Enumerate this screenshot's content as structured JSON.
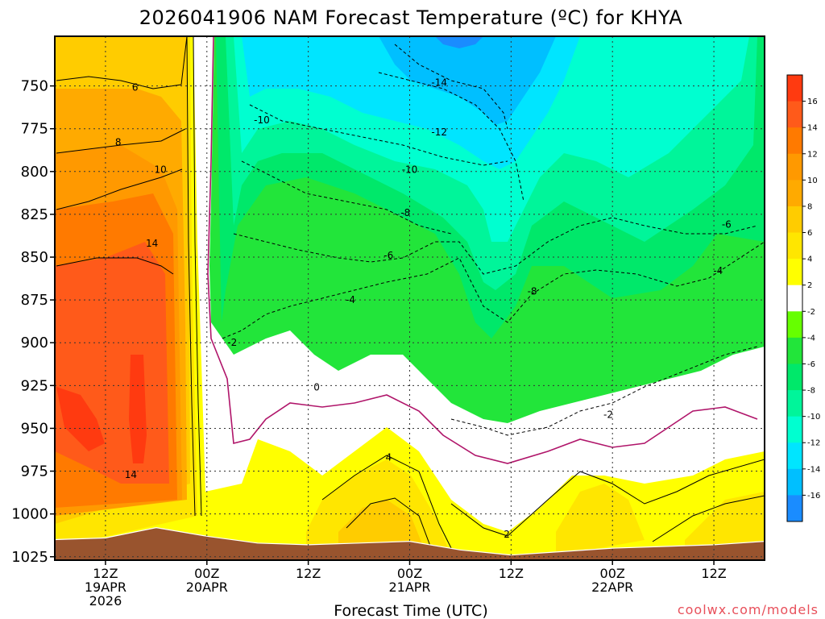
{
  "chart_data": {
    "type": "heatmap",
    "title": "2026041906 NAM Forecast Temperature (ºC) for KHYA",
    "xlabel": "Forecast Time (UTC)",
    "ylabel": "",
    "credit": "coolwx.com/models",
    "x_ticks": [
      {
        "hour": 6,
        "lines": [
          "12Z",
          "19APR",
          "2026"
        ]
      },
      {
        "hour": 18,
        "lines": [
          "00Z",
          "20APR"
        ]
      },
      {
        "hour": 30,
        "lines": [
          "12Z"
        ]
      },
      {
        "hour": 42,
        "lines": [
          "00Z",
          "21APR"
        ]
      },
      {
        "hour": 54,
        "lines": [
          "12Z"
        ]
      },
      {
        "hour": 66,
        "lines": [
          "00Z",
          "22APR"
        ]
      },
      {
        "hour": 78,
        "lines": [
          "12Z"
        ]
      }
    ],
    "xlim": [
      0,
      84
    ],
    "y_ticks": [
      750,
      775,
      800,
      825,
      850,
      875,
      900,
      925,
      950,
      975,
      1000,
      1025
    ],
    "ylim": [
      1027,
      721
    ],
    "colorbar": {
      "levels": [
        -18,
        -16,
        -14,
        -12,
        -10,
        -8,
        -6,
        -4,
        -2,
        2,
        4,
        6,
        8,
        10,
        12,
        14,
        16,
        18
      ],
      "tick_labels": [
        "16",
        "14",
        "12",
        "10",
        "8",
        "6",
        "4",
        "2",
        "-2",
        "-4",
        "-6",
        "-8",
        "-10",
        "-12",
        "-14",
        "-16"
      ],
      "colors": [
        "#1a8cff",
        "#00bfff",
        "#00e5ff",
        "#00ffd0",
        "#00f59a",
        "#00e86a",
        "#22e53a",
        "#66ff00",
        "#ffffff",
        "#ffff00",
        "#ffe600",
        "#ffcc00",
        "#ffaa00",
        "#ff9900",
        "#ff7a00",
        "#ff5a1a",
        "#ff3a10"
      ]
    },
    "contour_labels": [
      {
        "text": "6",
        "hour": 9.5,
        "p": 751
      },
      {
        "text": "8",
        "hour": 7.5,
        "p": 783
      },
      {
        "text": "10",
        "hour": 12.5,
        "p": 799
      },
      {
        "text": "14",
        "hour": 11.5,
        "p": 842
      },
      {
        "text": "14",
        "hour": 9.0,
        "p": 977
      },
      {
        "text": "-10",
        "hour": 24.5,
        "p": 770
      },
      {
        "text": "-14",
        "hour": 45.5,
        "p": 748
      },
      {
        "text": "-12",
        "hour": 45.5,
        "p": 777
      },
      {
        "text": "-10",
        "hour": 42.0,
        "p": 799
      },
      {
        "text": "-8",
        "hour": 41.5,
        "p": 824
      },
      {
        "text": "-6",
        "hour": 39.5,
        "p": 849
      },
      {
        "text": "-8",
        "hour": 56.5,
        "p": 870
      },
      {
        "text": "-4",
        "hour": 35.0,
        "p": 875
      },
      {
        "text": "-2",
        "hour": 21.0,
        "p": 900
      },
      {
        "text": "0",
        "hour": 31.0,
        "p": 926
      },
      {
        "text": "4",
        "hour": 39.5,
        "p": 967
      },
      {
        "text": "2",
        "hour": 53.5,
        "p": 1012
      },
      {
        "text": "-2",
        "hour": 65.5,
        "p": 942
      },
      {
        "text": "-6",
        "hour": 79.5,
        "p": 831
      },
      {
        "text": "-4",
        "hour": 78.5,
        "p": 858
      }
    ],
    "surface_pressure_approx": [
      {
        "hour": 0,
        "p": 1015
      },
      {
        "hour": 6,
        "p": 1014
      },
      {
        "hour": 12,
        "p": 1008
      },
      {
        "hour": 18,
        "p": 1013
      },
      {
        "hour": 24,
        "p": 1017
      },
      {
        "hour": 30,
        "p": 1018
      },
      {
        "hour": 36,
        "p": 1017
      },
      {
        "hour": 42,
        "p": 1016
      },
      {
        "hour": 48,
        "p": 1021
      },
      {
        "hour": 54,
        "p": 1024
      },
      {
        "hour": 60,
        "p": 1022
      },
      {
        "hour": 66,
        "p": 1020
      },
      {
        "hour": 72,
        "p": 1019
      },
      {
        "hour": 78,
        "p": 1018
      },
      {
        "hour": 84,
        "p": 1016
      }
    ]
  }
}
